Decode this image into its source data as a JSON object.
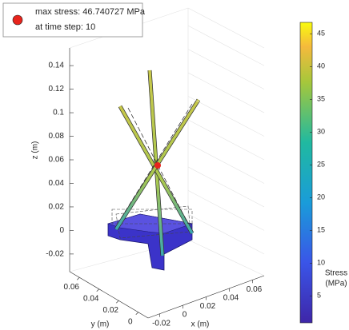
{
  "chart_data": {
    "type": "scatter3d",
    "legend_entries": [
      "max stress: 46.740727 MPa",
      "at time step: 10"
    ],
    "marker_color": "#e8241c",
    "xlabel": "x (m)",
    "ylabel": "y (m)",
    "zlabel": "z (m)",
    "xlim": [
      -0.03,
      0.07
    ],
    "xticks": [
      -0.02,
      0,
      0.02,
      0.04,
      0.06
    ],
    "ylim": [
      -0.01,
      0.07
    ],
    "yticks": [
      0,
      0.02,
      0.04,
      0.06
    ],
    "zlim": [
      -0.035,
      0.155
    ],
    "zticks": [
      -0.02,
      0,
      0.02,
      0.04,
      0.06,
      0.08,
      0.1,
      0.12,
      0.14
    ],
    "colorbar": {
      "label": [
        "Stress",
        "(MPa)"
      ],
      "lim": [
        0.9,
        46.74
      ],
      "ticks": [
        5,
        10,
        15,
        20,
        25,
        30,
        35,
        40,
        45
      ]
    }
  }
}
